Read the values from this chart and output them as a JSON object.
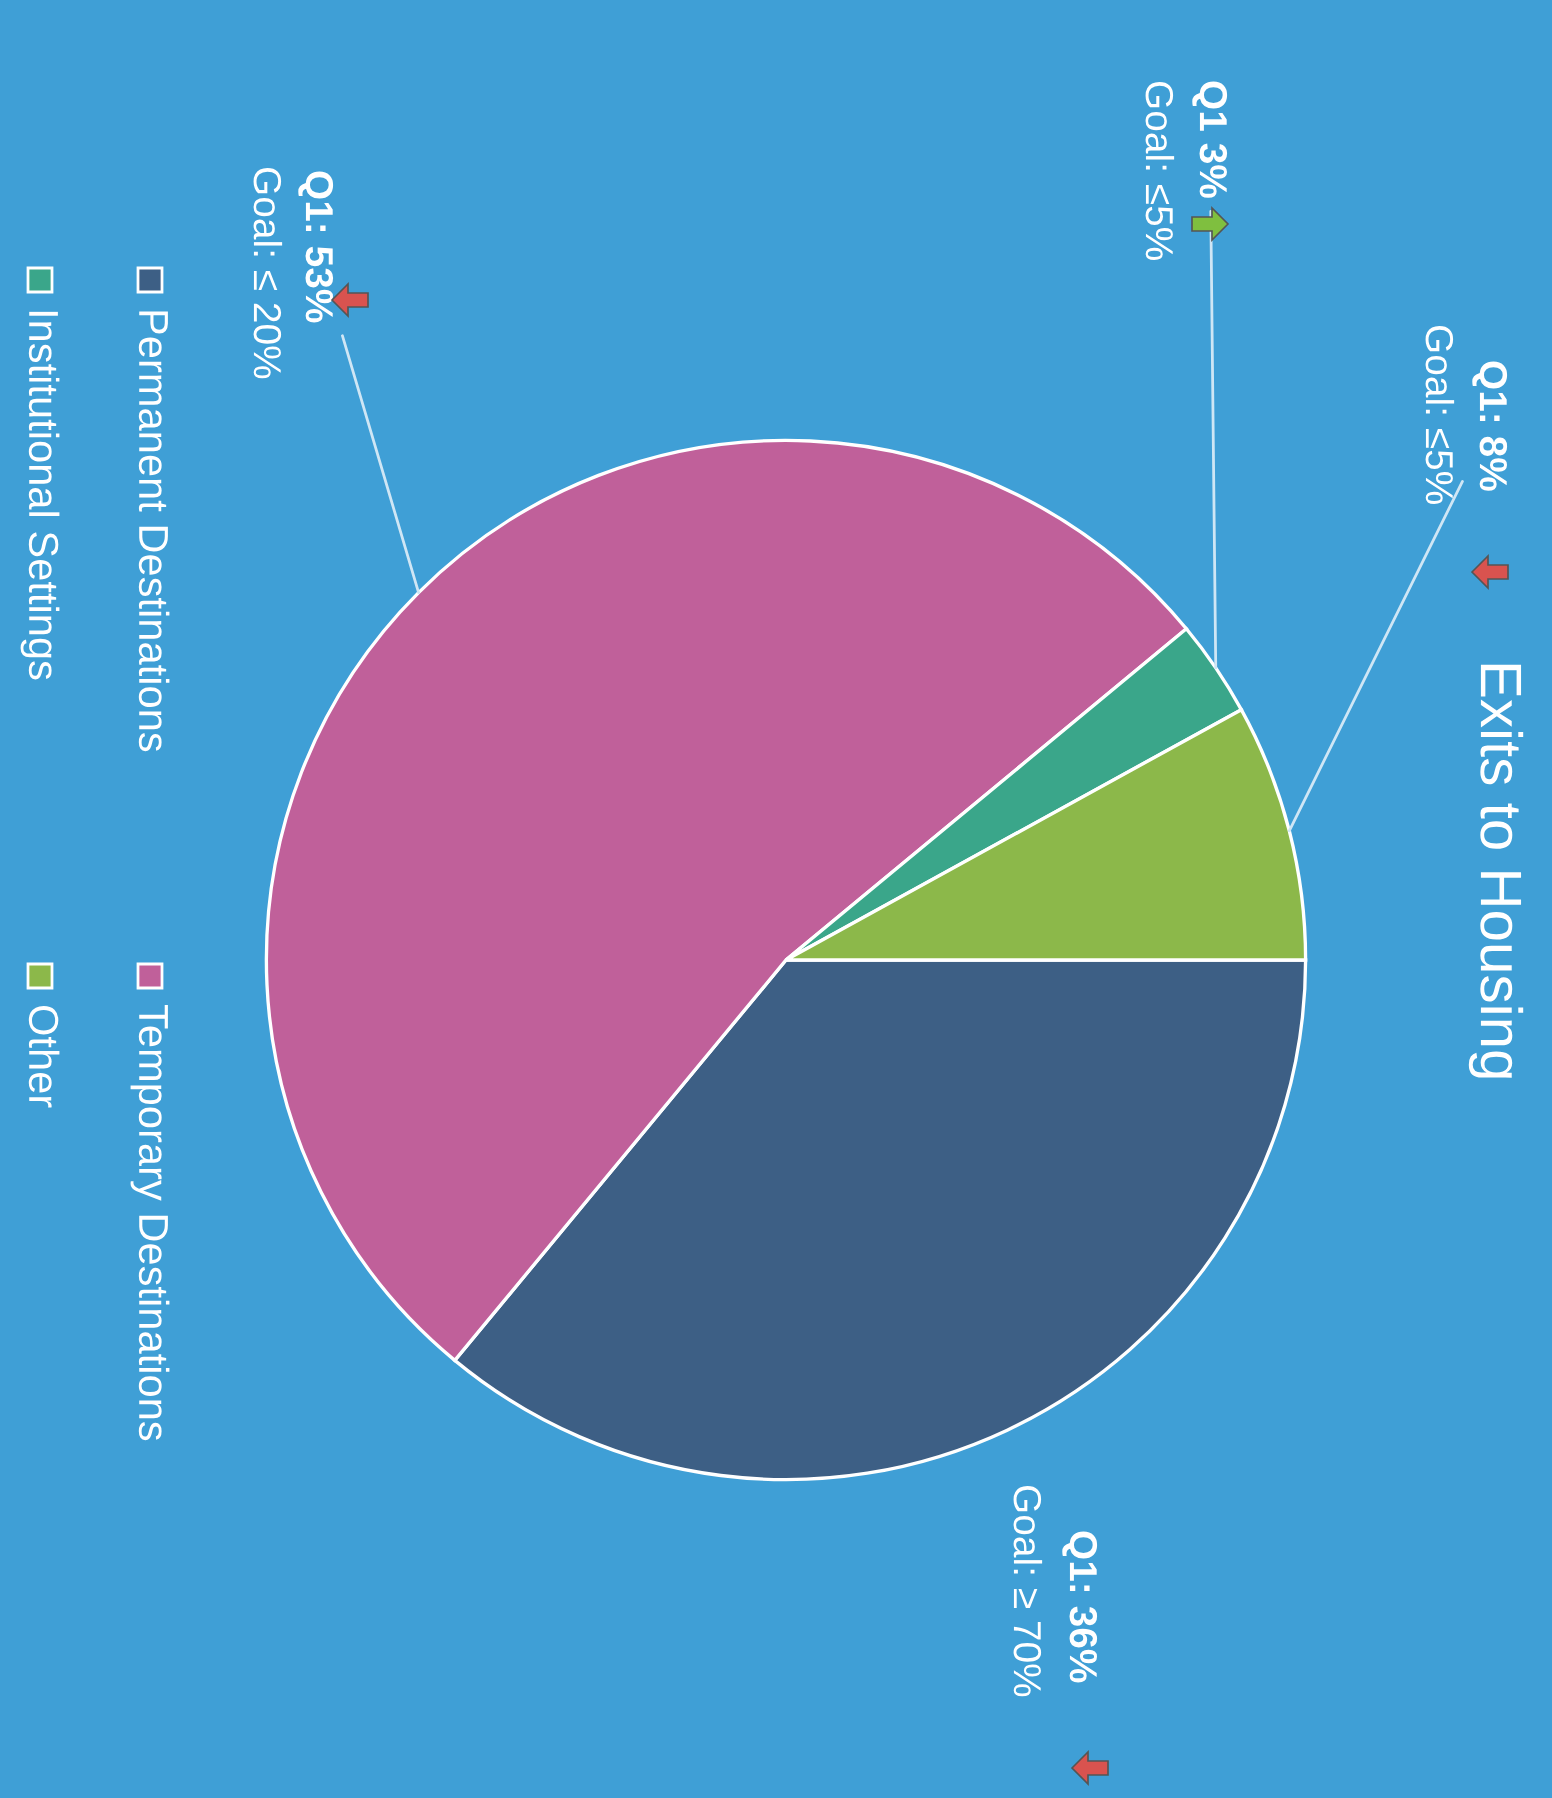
{
  "chart_data": {
    "type": "pie",
    "title": "Exits to Housing",
    "categories": [
      "Permanent Destinations",
      "Temporary Destinations",
      "Institutional Settings",
      "Other"
    ],
    "values": [
      36,
      53,
      3,
      8
    ],
    "colors": [
      "#3d5f85",
      "#c0609a",
      "#3aa68a",
      "#8cb84a"
    ],
    "value_labels": [
      "Q1: 36%",
      "Q1: 53%",
      "Q1 3%",
      "Q1: 8%"
    ],
    "annotations": [
      "Goal: ≥ 70%",
      "Goal: ≤ 20%",
      "Goal: ≤5%",
      "Goal: ≤5%"
    ],
    "legend": "left"
  }
}
